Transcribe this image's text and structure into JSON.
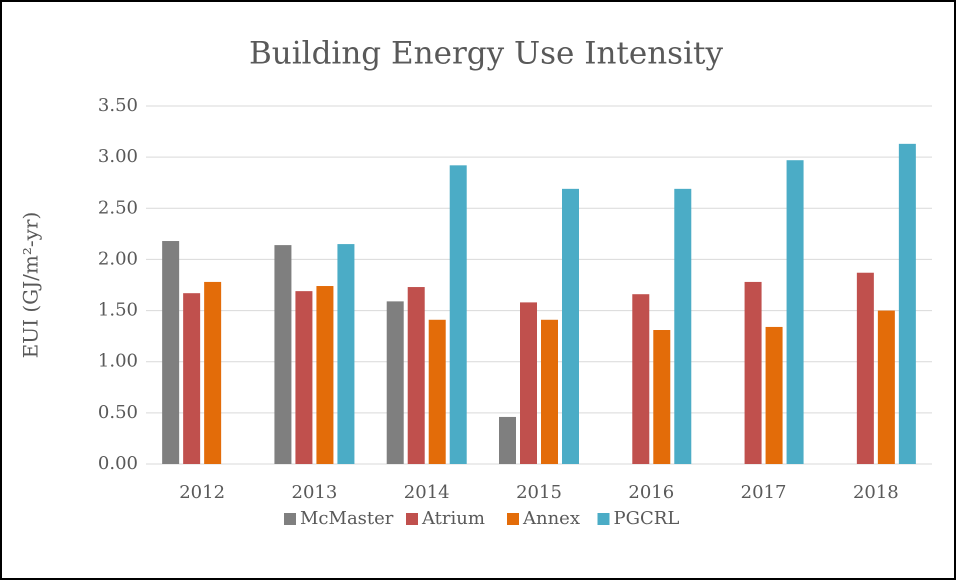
{
  "chart_data": {
    "type": "bar",
    "title": "Building Energy Use Intensity",
    "y_label": "EUI (GJ/m²-yr)",
    "categories": [
      "2012",
      "2013",
      "2014",
      "2015",
      "2016",
      "2017",
      "2018"
    ],
    "series": [
      {
        "name": "McMaster",
        "color": "#7f7f7f",
        "values": [
          2.18,
          2.14,
          1.59,
          0.46,
          null,
          null,
          null
        ]
      },
      {
        "name": "Atrium",
        "color": "#c0504d",
        "values": [
          1.67,
          1.69,
          1.73,
          1.58,
          1.66,
          1.78,
          1.87
        ]
      },
      {
        "name": "Annex",
        "color": "#e36c09",
        "values": [
          1.78,
          1.74,
          1.41,
          1.41,
          1.31,
          1.34,
          1.5
        ]
      },
      {
        "name": "PGCRL",
        "color": "#4bacc6",
        "values": [
          null,
          2.15,
          2.92,
          2.69,
          2.69,
          2.97,
          3.13
        ]
      }
    ],
    "ylim": [
      0,
      3.5
    ],
    "yticks": [
      {
        "value": 0,
        "label": "0.00"
      },
      {
        "value": 0.5,
        "label": "0.50"
      },
      {
        "value": 1,
        "label": "1.00"
      },
      {
        "value": 1.5,
        "label": "1.50"
      },
      {
        "value": 2,
        "label": "2.00"
      },
      {
        "value": 2.5,
        "label": "2.50"
      },
      {
        "value": 3,
        "label": "3.00"
      },
      {
        "value": 3.5,
        "label": "3.50"
      }
    ],
    "grid": true,
    "legend": "bottom"
  }
}
